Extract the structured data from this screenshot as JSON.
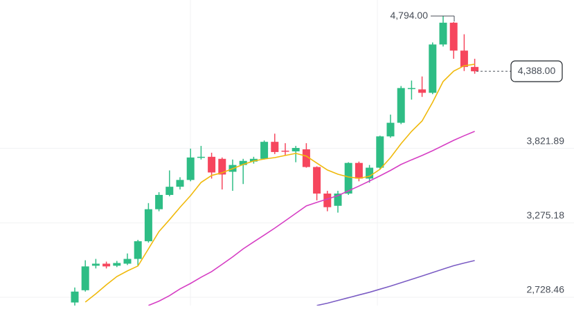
{
  "chart_data": {
    "type": "candlestick",
    "ylim": [
      2667.5,
      4911.7
    ],
    "yticks": [
      {
        "value": 2728.46,
        "label": "2,728.46"
      },
      {
        "value": 3275.18,
        "label": "3,275.18"
      },
      {
        "value": 3821.89,
        "label": "3,821.89"
      }
    ],
    "grid": true,
    "up_color": "#2ebd85",
    "down_color": "#f6465d",
    "candles": {
      "open": [
        2690,
        2780,
        2960,
        2975,
        2960,
        2975,
        3010,
        3140,
        3375,
        3480,
        3540,
        3590,
        3755,
        3760,
        3745,
        3650,
        3700,
        3725,
        3745,
        3870,
        3805,
        3800,
        3815,
        3685,
        3490,
        3400,
        3490,
        3715,
        3600,
        3680,
        3910,
        4010,
        4260,
        4255,
        4230,
        4585,
        4745,
        4540,
        4420
      ],
      "high": [
        2800,
        3000,
        3010,
        2990,
        2995,
        3050,
        3150,
        3420,
        3500,
        3660,
        3610,
        3820,
        3840,
        3790,
        3755,
        3740,
        3745,
        3760,
        3880,
        3930,
        3860,
        3840,
        3860,
        3690,
        3510,
        3510,
        3720,
        3725,
        3700,
        3915,
        4070,
        4280,
        4320,
        4350,
        4600,
        4794,
        4750,
        4660,
        4480
      ],
      "low": [
        2660,
        2770,
        2940,
        2940,
        2950,
        2965,
        2960,
        3130,
        3360,
        3470,
        3520,
        3580,
        3740,
        3600,
        3520,
        3510,
        3560,
        3710,
        3740,
        3780,
        3770,
        3720,
        3680,
        3440,
        3360,
        3350,
        3480,
        3580,
        3570,
        3670,
        3900,
        4000,
        4180,
        4200,
        4220,
        4570,
        4480,
        4390,
        4370
      ],
      "close": [
        2770,
        2955,
        2975,
        2955,
        2980,
        3010,
        3140,
        3375,
        3480,
        3540,
        3590,
        3755,
        3760,
        3645,
        3630,
        3700,
        3730,
        3745,
        3870,
        3795,
        3800,
        3825,
        3685,
        3490,
        3390,
        3490,
        3715,
        3600,
        3680,
        3910,
        4010,
        4265,
        4265,
        4230,
        4585,
        4745,
        4540,
        4420,
        4388
      ]
    },
    "series": [
      {
        "color": "#f0b90b",
        "values": [
          null,
          2693,
          2754,
          2820,
          2881,
          2922,
          2958,
          3084,
          3211,
          3298,
          3389,
          3475,
          3572,
          3623,
          3643,
          3673,
          3704,
          3729,
          3744,
          3754,
          3770,
          3785,
          3765,
          3714,
          3663,
          3632,
          3612,
          3602,
          3617,
          3668,
          3754,
          3856,
          3947,
          4023,
          4160,
          4313,
          4389,
          4429,
          4440
        ]
      },
      {
        "color": "#d63ec4",
        "values": [
          null,
          null,
          null,
          null,
          null,
          null,
          null,
          2668,
          2700,
          2740,
          2790,
          2830,
          2875,
          2917,
          2970,
          3025,
          3084,
          3135,
          3185,
          3236,
          3290,
          3345,
          3399,
          3425,
          3450,
          3475,
          3510,
          3545,
          3582,
          3620,
          3660,
          3704,
          3738,
          3770,
          3805,
          3843,
          3881,
          3915,
          3947
        ]
      },
      {
        "color": "#7b5cc4",
        "values": [
          null,
          null,
          null,
          null,
          null,
          null,
          null,
          null,
          null,
          null,
          null,
          null,
          null,
          null,
          null,
          null,
          null,
          null,
          null,
          null,
          null,
          null,
          null,
          2668,
          2685,
          2705,
          2725,
          2745,
          2765,
          2788,
          2810,
          2835,
          2860,
          2885,
          2910,
          2935,
          2960,
          2980,
          2998
        ]
      }
    ],
    "high_marker": {
      "value": 4794,
      "label": "4,794.00"
    },
    "last_price": {
      "value": 4388,
      "label": "4,388.00"
    }
  }
}
